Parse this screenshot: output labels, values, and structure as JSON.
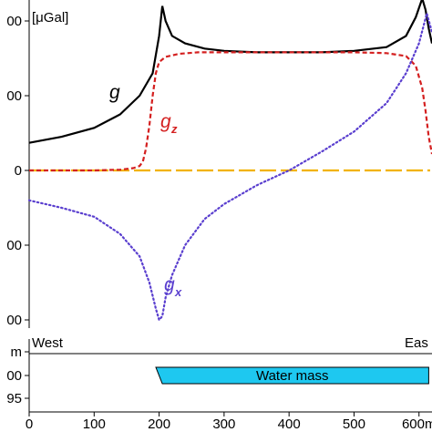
{
  "chart_data": [
    {
      "type": "line",
      "ylabel": "[μGal]",
      "y_tick_labels": [
        "00",
        "00",
        "0",
        "00",
        "00"
      ],
      "y_tick_values": [
        200,
        100,
        0,
        -100,
        -200
      ],
      "xlim": [
        0,
        620
      ],
      "ylim": [
        -200,
        230
      ],
      "grid": false,
      "zero_line_color": "#f2b300",
      "series": [
        {
          "name": "g",
          "subscript": "",
          "color": "#000000",
          "style": "solid",
          "x": [
            0,
            50,
            100,
            140,
            170,
            190,
            200,
            205,
            210,
            220,
            240,
            270,
            300,
            350,
            400,
            450,
            500,
            550,
            580,
            595,
            605,
            610,
            615,
            620
          ],
          "y": [
            37,
            45,
            57,
            75,
            100,
            130,
            180,
            220,
            200,
            180,
            170,
            163,
            160,
            158,
            158,
            158,
            160,
            165,
            180,
            205,
            230,
            215,
            190,
            170
          ]
        },
        {
          "name": "g",
          "subscript": "z",
          "color": "#d42020",
          "style": "dash",
          "x": [
            0,
            50,
            100,
            140,
            160,
            170,
            175,
            180,
            185,
            190,
            195,
            200,
            210,
            230,
            260,
            300,
            350,
            400,
            450,
            500,
            550,
            580,
            595,
            605,
            610,
            615,
            620
          ],
          "y": [
            0,
            0,
            0,
            1,
            3,
            6,
            12,
            30,
            60,
            100,
            130,
            145,
            152,
            156,
            158,
            158,
            158,
            158,
            158,
            158,
            157,
            153,
            140,
            110,
            80,
            45,
            22
          ]
        },
        {
          "name": "g",
          "subscript": "x",
          "color": "#5a3fcf",
          "style": "dot",
          "x": [
            0,
            50,
            100,
            140,
            170,
            185,
            195,
            200,
            205,
            210,
            220,
            240,
            270,
            300,
            350,
            400,
            450,
            500,
            550,
            580,
            600,
            612,
            620
          ],
          "y": [
            -40,
            -50,
            -62,
            -85,
            -115,
            -150,
            -185,
            -200,
            -195,
            -170,
            -140,
            -100,
            -65,
            -45,
            -20,
            0,
            25,
            52,
            90,
            130,
            170,
            210,
            185
          ]
        }
      ]
    },
    {
      "type": "area",
      "left_label": "West",
      "right_label": "Eas",
      "y_tick_labels": [
        "m",
        "00",
        "95"
      ],
      "xlim": [
        0,
        620
      ],
      "x_tick_labels": [
        "0",
        "100",
        "200",
        "300",
        "400",
        "500",
        "600m"
      ],
      "x_tick_values": [
        0,
        100,
        200,
        300,
        400,
        500,
        600
      ],
      "regions": [
        {
          "label": "Water mass",
          "color": "#1ec8f0",
          "x_top": [
            195,
            615
          ],
          "x_bottom": [
            205,
            615
          ]
        }
      ]
    }
  ]
}
